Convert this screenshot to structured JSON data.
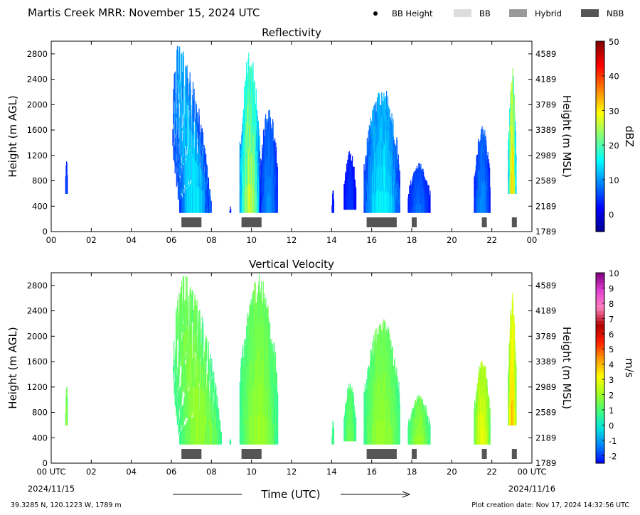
{
  "header": {
    "title": "Martis Creek MRR:  November 15, 2024 UTC",
    "legend": [
      {
        "label": "BB Height",
        "kind": "dot",
        "color": "#000000"
      },
      {
        "label": "BB",
        "kind": "box",
        "color": "#dddddd"
      },
      {
        "label": "Hybrid",
        "kind": "box",
        "color": "#999999"
      },
      {
        "label": "NBB",
        "kind": "box",
        "color": "#555555"
      }
    ]
  },
  "footer": {
    "xlabel": "Time (UTC)",
    "start_date": "2024/11/15",
    "end_date": "2024/11/16",
    "location": "39.3285 N, 120.1223 W, 1789 m",
    "creation": "Plot creation date: Nov 17, 2024 14:32:56 UTC"
  },
  "chart_data": [
    {
      "type": "heatmap",
      "title": "Reflectivity",
      "ylabel": "Height (m AGL)",
      "ylabel_right": "Height (m MSL)",
      "colorbar_label": "dBZ",
      "colorbar_range": [
        -5,
        50
      ],
      "colorbar_ticks": [
        "0",
        "10",
        "20",
        "30",
        "40",
        "50"
      ],
      "colorbar_tick_values": [
        0,
        10,
        20,
        30,
        40,
        50
      ],
      "colors": [
        "#00008f",
        "#0000ff",
        "#0080ff",
        "#00ffff",
        "#80ff80",
        "#ffff00",
        "#ff8000",
        "#ff0000",
        "#800000"
      ],
      "xlim": [
        0,
        24
      ],
      "ylim": [
        0,
        3000
      ],
      "x_ticks": [
        "00",
        "02",
        "04",
        "06",
        "08",
        "10",
        "12",
        "14",
        "16",
        "18",
        "20",
        "22",
        "00"
      ],
      "y_ticks": [
        "0",
        "400",
        "800",
        "1200",
        "1600",
        "2000",
        "2400",
        "2800"
      ],
      "y_ticks_right": [
        "1789",
        "2189",
        "2589",
        "2989",
        "3389",
        "3789",
        "4189",
        "4589"
      ],
      "echoes": [
        {
          "x": [
            0.7,
            0.8
          ],
          "bottom": 600,
          "top": 1200,
          "base": 2,
          "peak": 6
        },
        {
          "x": [
            5.4,
            7.0
          ],
          "bottom": 300,
          "top": 3000,
          "base": 3,
          "peak": 15,
          "lean": 1.1
        },
        {
          "x": [
            7.7,
            7.85
          ],
          "bottom": 300,
          "top": 800,
          "base": 2,
          "peak": 8
        },
        {
          "x": [
            8.9,
            8.95
          ],
          "bottom": 300,
          "top": 400,
          "base": 2,
          "peak": 4
        },
        {
          "x": [
            9.4,
            10.4
          ],
          "bottom": 300,
          "top": 2900,
          "base": 6,
          "peak": 27
        },
        {
          "x": [
            10.4,
            11.3
          ],
          "bottom": 300,
          "top": 2000,
          "base": 2,
          "peak": 10
        },
        {
          "x": [
            14.0,
            14.1
          ],
          "bottom": 300,
          "top": 700,
          "base": 2,
          "peak": 4
        },
        {
          "x": [
            14.6,
            15.2
          ],
          "bottom": 350,
          "top": 1300,
          "base": 1,
          "peak": 5
        },
        {
          "x": [
            15.6,
            17.4
          ],
          "bottom": 300,
          "top": 2300,
          "base": 3,
          "peak": 16
        },
        {
          "x": [
            17.8,
            18.9
          ],
          "bottom": 300,
          "top": 1100,
          "base": 2,
          "peak": 8
        },
        {
          "x": [
            21.1,
            21.9
          ],
          "bottom": 300,
          "top": 1700,
          "base": 2,
          "peak": 10
        },
        {
          "x": [
            22.8,
            23.2
          ],
          "bottom": 600,
          "top": 2600,
          "base": 8,
          "peak": 32
        }
      ],
      "bright_band": [
        {
          "x": [
            6.5,
            7.5
          ],
          "type": "NBB"
        },
        {
          "x": [
            9.5,
            10.5
          ],
          "type": "NBB"
        },
        {
          "x": [
            15.75,
            17.25
          ],
          "type": "NBB"
        },
        {
          "x": [
            18.0,
            18.25
          ],
          "type": "NBB"
        },
        {
          "x": [
            21.5,
            21.75
          ],
          "type": "NBB"
        },
        {
          "x": [
            23.0,
            23.25
          ],
          "type": "NBB"
        }
      ]
    },
    {
      "type": "heatmap",
      "title": "Vertical Velocity",
      "ylabel": "Height (m AGL)",
      "ylabel_right": "Height (m MSL)",
      "colorbar_label": "m/s",
      "colorbar_range": [
        -2.5,
        10
      ],
      "colorbar_ticks": [
        "-2",
        "-1",
        "0",
        "1",
        "2",
        "3",
        "4",
        "5",
        "6",
        "7",
        "8",
        "9",
        "10"
      ],
      "colorbar_tick_values": [
        -2,
        -1,
        0,
        1,
        2,
        3,
        4,
        5,
        6,
        7,
        8,
        9,
        10
      ],
      "colors": [
        "#0000ff",
        "#0080ff",
        "#00e0e0",
        "#40ff80",
        "#a0ff20",
        "#ffff00",
        "#ffa000",
        "#ff2000",
        "#b00000",
        "#ff80c0",
        "#e040d0",
        "#800080"
      ],
      "xlim": [
        0,
        24
      ],
      "ylim": [
        0,
        3000
      ],
      "x_ticks": [
        "00 UTC",
        "02",
        "04",
        "06",
        "08",
        "10",
        "12",
        "14",
        "16",
        "18",
        "20",
        "22",
        "00 UTC"
      ],
      "y_ticks": [
        "0",
        "400",
        "800",
        "1200",
        "1600",
        "2000",
        "2400",
        "2800"
      ],
      "y_ticks_right": [
        "1789",
        "2189",
        "2589",
        "2989",
        "3389",
        "3789",
        "4189",
        "4589"
      ],
      "echoes": [
        {
          "x": [
            0.7,
            0.8
          ],
          "bottom": 600,
          "top": 1300,
          "base": 0.5,
          "peak": 2
        },
        {
          "x": [
            5.4,
            7.5
          ],
          "bottom": 300,
          "top": 3000,
          "base": 0.5,
          "peak": 2,
          "lean": 1.1
        },
        {
          "x": [
            7.7,
            7.85
          ],
          "bottom": 300,
          "top": 800,
          "base": 0.5,
          "peak": 2
        },
        {
          "x": [
            8.9,
            8.95
          ],
          "bottom": 300,
          "top": 400,
          "base": 0.5,
          "peak": 1
        },
        {
          "x": [
            9.4,
            11.3
          ],
          "bottom": 300,
          "top": 3000,
          "base": 0.5,
          "peak": 2
        },
        {
          "x": [
            14.0,
            14.1
          ],
          "bottom": 300,
          "top": 700,
          "base": 0.5,
          "peak": 1
        },
        {
          "x": [
            14.6,
            15.2
          ],
          "bottom": 350,
          "top": 1300,
          "base": 0.5,
          "peak": 1.5
        },
        {
          "x": [
            15.6,
            17.4
          ],
          "bottom": 300,
          "top": 2300,
          "base": 0.5,
          "peak": 2
        },
        {
          "x": [
            17.8,
            18.9
          ],
          "bottom": 300,
          "top": 1100,
          "base": 0.5,
          "peak": 2
        },
        {
          "x": [
            21.1,
            21.9
          ],
          "bottom": 300,
          "top": 1700,
          "base": 1,
          "peak": 3
        },
        {
          "x": [
            22.8,
            23.2
          ],
          "bottom": 600,
          "top": 2700,
          "base": 1,
          "peak": 4
        }
      ],
      "bright_band": [
        {
          "x": [
            6.5,
            7.5
          ],
          "type": "NBB"
        },
        {
          "x": [
            9.5,
            10.5
          ],
          "type": "NBB"
        },
        {
          "x": [
            15.75,
            17.25
          ],
          "type": "NBB"
        },
        {
          "x": [
            18.0,
            18.25
          ],
          "type": "NBB"
        },
        {
          "x": [
            21.5,
            21.75
          ],
          "type": "NBB"
        },
        {
          "x": [
            23.0,
            23.25
          ],
          "type": "NBB"
        }
      ]
    }
  ]
}
